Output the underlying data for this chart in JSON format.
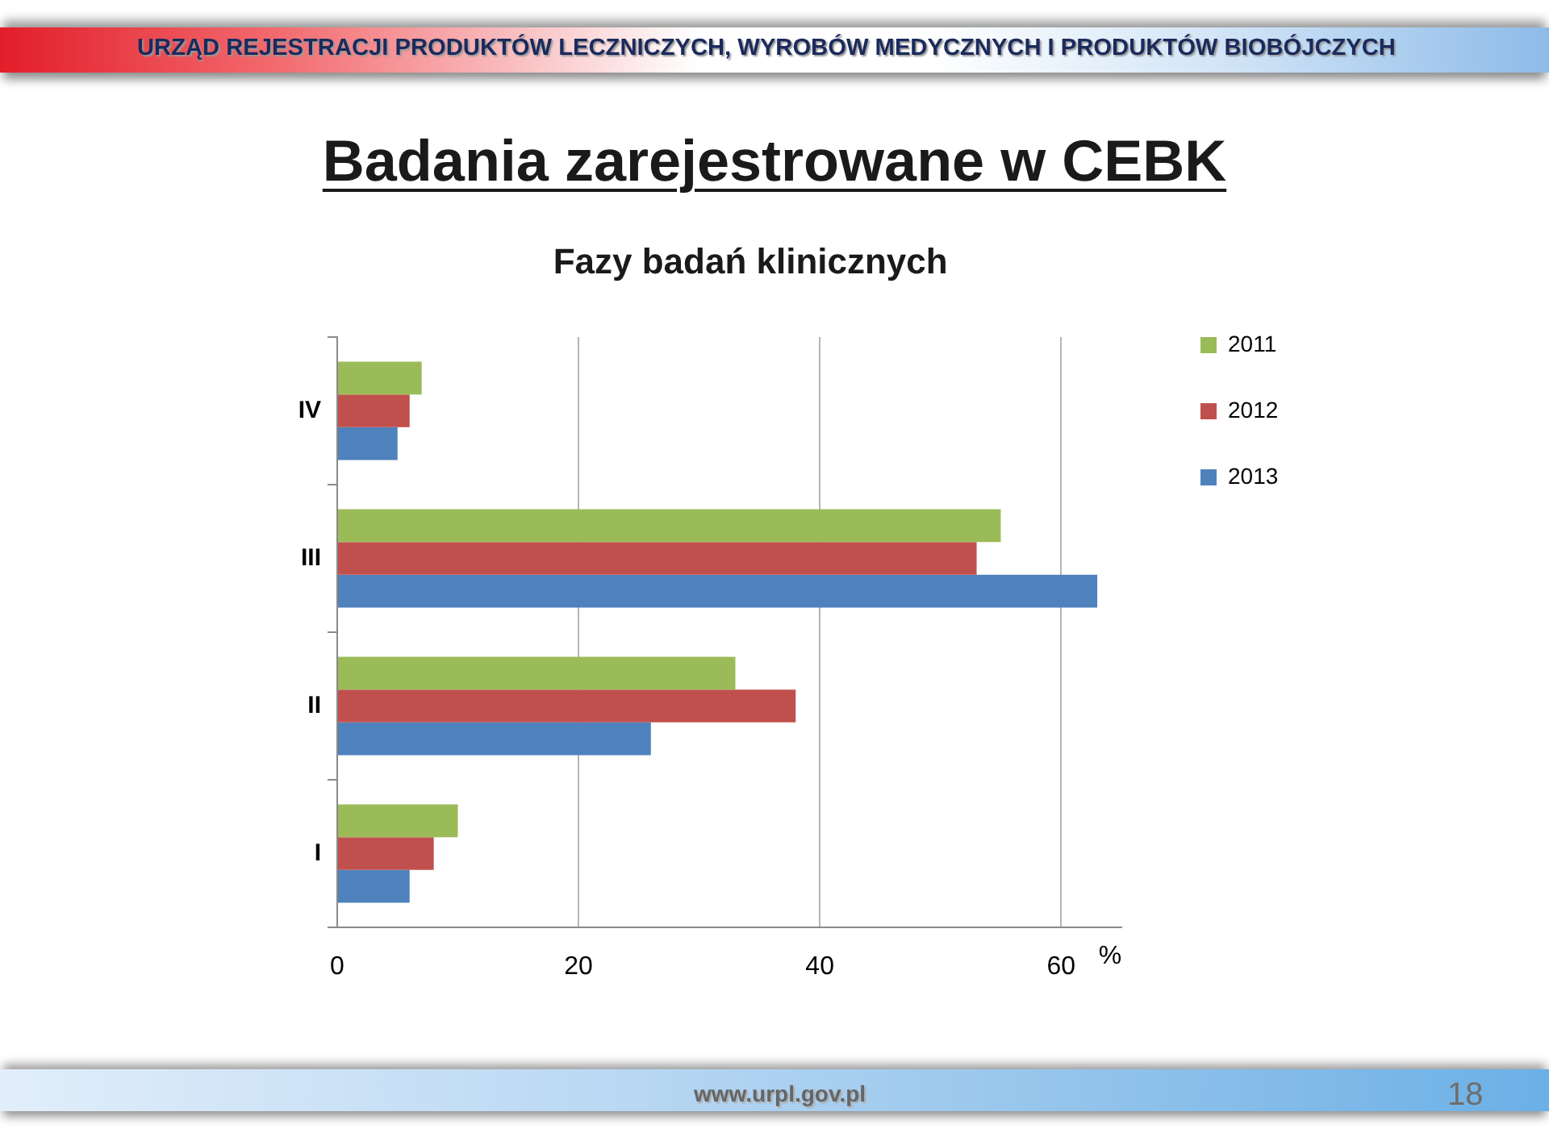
{
  "chart_data": {
    "type": "bar",
    "orientation": "horizontal",
    "title": "Badania zarejestrowane w CEBK",
    "subtitle": "Fazy badań klinicznych",
    "categories": [
      "IV",
      "III",
      "II",
      "I"
    ],
    "series": [
      {
        "name": "2011",
        "color": "#9bbb59",
        "values": [
          7,
          55,
          33,
          10
        ]
      },
      {
        "name": "2012",
        "color": "#c0504d",
        "values": [
          6,
          53,
          38,
          8
        ]
      },
      {
        "name": "2013",
        "color": "#4f81bd",
        "values": [
          5,
          63,
          26,
          6
        ]
      }
    ],
    "xlabel": "%",
    "xlim": [
      0,
      65
    ],
    "xticks": [
      0,
      20,
      40,
      60
    ],
    "grid": "x",
    "legend": "top right",
    "annotations": [
      "URZĄD REJESTRACJI PRODUKTÓW LECZNICZYCH, WYROBÓW MEDYCZNYCH I PRODUKTÓW BIOBÓJCZYCH",
      "www.urpl.gov.pl",
      "18"
    ]
  }
}
